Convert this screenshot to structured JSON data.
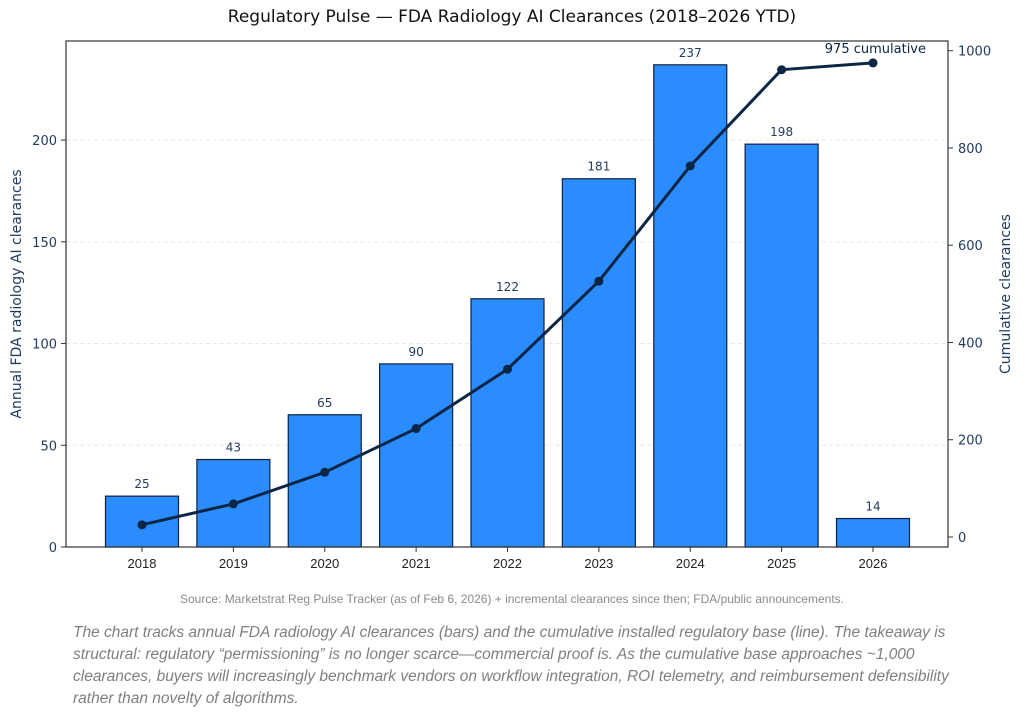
{
  "chart_data": {
    "type": "bar",
    "title": "Regulatory Pulse — FDA Radiology AI Clearances (2018–2026 YTD)",
    "categories": [
      "2018",
      "2019",
      "2020",
      "2021",
      "2022",
      "2023",
      "2024",
      "2025",
      "2026"
    ],
    "series": [
      {
        "name": "Annual clearances",
        "type": "bar",
        "axis": "left",
        "values": [
          25,
          43,
          65,
          90,
          122,
          181,
          237,
          198,
          14
        ],
        "color": "#2b8cff",
        "edge_color": "#0d2240"
      },
      {
        "name": "Cumulative clearances",
        "type": "line",
        "axis": "right",
        "values": [
          25,
          68,
          133,
          223,
          345,
          526,
          763,
          961,
          975
        ],
        "color": "#0b2545",
        "marker": "circle"
      }
    ],
    "data_labels": [
      "25",
      "43",
      "65",
      "90",
      "122",
      "181",
      "237",
      "198",
      "14"
    ],
    "annotation": "975 cumulative",
    "xlabel": "",
    "ylabel_left": "Annual FDA radiology AI clearances",
    "ylabel_right": "Cumulative clearances",
    "ylim_left": [
      0,
      248.7
    ],
    "ylim_right": [
      -20.6,
      1020
    ],
    "yticks_left": [
      "0",
      "50",
      "100",
      "150",
      "200"
    ],
    "yticks_right": [
      "0",
      "200",
      "400",
      "600",
      "800",
      "1000"
    ],
    "yticks_left_values": [
      0,
      50,
      100,
      150,
      200
    ],
    "yticks_right_values": [
      0,
      200,
      400,
      600,
      800,
      1000
    ],
    "grid": "horizontal dashed",
    "axis_label_color": "#1f3a5f"
  },
  "source_note": "Source: Marketstrat Reg Pulse Tracker (as of Feb 6, 2026) + incremental clearances since then; FDA/public announcements.",
  "commentary": "The chart tracks annual FDA radiology AI clearances (bars) and the cumulative installed regulatory base (line). The takeaway is structural: regulatory “permissioning” is no longer scarce—commercial proof is. As the cumulative base approaches ~1,000 clearances, buyers will increasingly benchmark vendors on workflow integration, ROI telemetry, and reimbursement defensibility rather than novelty of algorithms."
}
